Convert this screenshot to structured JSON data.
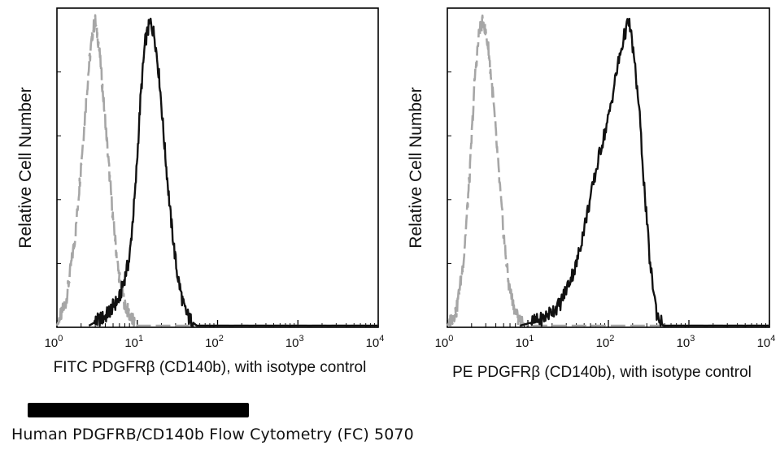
{
  "caption": "Human PDGFRB/CD140b Flow Cytometry (FC) 5070",
  "colors": {
    "sample": "#111111",
    "isotope_control": "#a6a6a6"
  },
  "chart_data": [
    {
      "type": "line",
      "xscale": "log",
      "xlim": [
        1,
        10000
      ],
      "ylim": [
        0,
        1.0
      ],
      "xlabel": "FITC PDGFRβ (CD140b), with isotype control",
      "ylabel": "Relative Cell Number",
      "xticks": [
        1,
        10,
        100,
        1000,
        10000
      ],
      "xtick_labels": [
        {
          "base": "10",
          "exp": "0"
        },
        {
          "base": "10",
          "exp": "1"
        },
        {
          "base": "10",
          "exp": "2"
        },
        {
          "base": "10",
          "exp": "3"
        },
        {
          "base": "10",
          "exp": "4"
        }
      ],
      "series": [
        {
          "style": "dashed-gray",
          "x": [
            1,
            1.3,
            1.7,
            2.1,
            2.5,
            2.8,
            3.0,
            3.3,
            3.7,
            4.2,
            5.0,
            5.8,
            7.0,
            8.5,
            10
          ],
          "y": [
            0.0,
            0.08,
            0.3,
            0.6,
            0.85,
            0.97,
            1.0,
            0.93,
            0.78,
            0.6,
            0.35,
            0.18,
            0.07,
            0.02,
            0.0
          ]
        },
        {
          "style": "solid-black",
          "x": [
            2.5,
            4,
            6,
            8,
            9.5,
            11,
            12.5,
            14.5,
            16.5,
            19,
            22,
            26,
            31,
            38,
            45,
            55
          ],
          "y": [
            0.0,
            0.03,
            0.09,
            0.22,
            0.45,
            0.75,
            0.93,
            1.0,
            0.95,
            0.8,
            0.58,
            0.36,
            0.18,
            0.06,
            0.02,
            0.0
          ]
        }
      ]
    },
    {
      "type": "line",
      "xscale": "log",
      "xlim": [
        1,
        10000
      ],
      "ylim": [
        0,
        1.0
      ],
      "xlabel": "PE PDGFRβ (CD140b), with isotype control",
      "ylabel": "Relative Cell Number",
      "xticks": [
        1,
        10,
        100,
        1000,
        10000
      ],
      "xtick_labels": [
        {
          "base": "10",
          "exp": "0"
        },
        {
          "base": "10",
          "exp": "1"
        },
        {
          "base": "10",
          "exp": "2"
        },
        {
          "base": "10",
          "exp": "3"
        },
        {
          "base": "10",
          "exp": "4"
        }
      ],
      "series": [
        {
          "style": "dashed-gray",
          "x": [
            1,
            1.3,
            1.6,
            1.9,
            2.2,
            2.5,
            2.8,
            3.2,
            3.7,
            4.3,
            5.0,
            5.8,
            7.0,
            8.5,
            10
          ],
          "y": [
            0.0,
            0.05,
            0.22,
            0.5,
            0.82,
            0.97,
            1.0,
            0.92,
            0.75,
            0.52,
            0.3,
            0.13,
            0.04,
            0.01,
            0.0
          ]
        },
        {
          "style": "solid-black",
          "x": [
            8,
            15,
            25,
            40,
            60,
            80,
            100,
            130,
            160,
            180,
            200,
            240,
            280,
            330,
            400,
            480
          ],
          "y": [
            0.0,
            0.02,
            0.07,
            0.2,
            0.42,
            0.58,
            0.68,
            0.85,
            0.96,
            1.0,
            0.92,
            0.72,
            0.45,
            0.2,
            0.04,
            0.0
          ]
        }
      ]
    }
  ]
}
